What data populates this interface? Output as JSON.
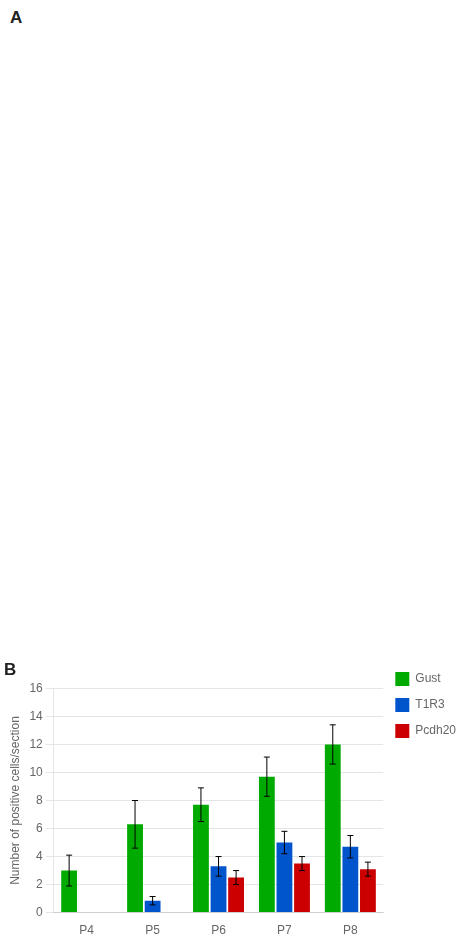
{
  "chart_data": {
    "type": "bar",
    "title": "B",
    "annotations": [
      {
        "text": "A"
      }
    ],
    "categories": [
      "P4",
      "P5",
      "P6",
      "P7",
      "P8"
    ],
    "series": [
      {
        "name": "Gust",
        "color": "#00aa00",
        "values": [
          3.0,
          6.3,
          7.7,
          9.7,
          12.0
        ],
        "errors": [
          1.1,
          1.7,
          1.2,
          1.4,
          1.4
        ]
      },
      {
        "name": "T1R3",
        "color": "#0055cc",
        "values": [
          0.0,
          0.85,
          3.3,
          5.0,
          4.7
        ],
        "errors": [
          0.0,
          0.3,
          0.7,
          0.8,
          0.8
        ]
      },
      {
        "name": "Pcdh20",
        "color": "#cc0000",
        "values": [
          0.0,
          0.0,
          2.5,
          3.5,
          3.1
        ],
        "errors": [
          0.0,
          0.0,
          0.5,
          0.5,
          0.5
        ]
      }
    ],
    "ylabel": "Number of positive cells/section",
    "ylim": [
      0,
      16
    ],
    "yticks": [
      0,
      2,
      4,
      6,
      8,
      10,
      12,
      14,
      16
    ],
    "grid": true,
    "legend": "right"
  }
}
